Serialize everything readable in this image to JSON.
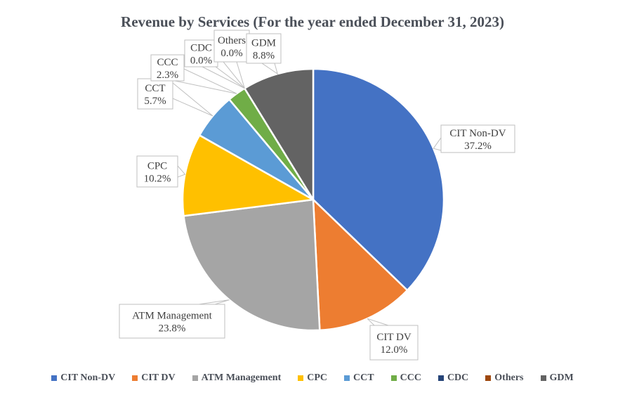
{
  "chart_data": {
    "type": "pie",
    "title": "Revenue by Services (For the year ended December 31, 2023)",
    "unit": "%",
    "legend_position": "bottom",
    "start_angle_deg": 0,
    "direction": "clockwise",
    "slices": [
      {
        "label": "CIT Non-DV",
        "value": 37.2,
        "pct_label": "37.2%",
        "color": "#4472C4"
      },
      {
        "label": "CIT DV",
        "value": 12.0,
        "pct_label": "12.0%",
        "color": "#ED7D31"
      },
      {
        "label": "ATM Management",
        "value": 23.8,
        "pct_label": "23.8%",
        "color": "#A5A5A5"
      },
      {
        "label": "CPC",
        "value": 10.2,
        "pct_label": "10.2%",
        "color": "#FFC000"
      },
      {
        "label": "CCT",
        "value": 5.7,
        "pct_label": "5.7%",
        "color": "#5B9BD5"
      },
      {
        "label": "CCC",
        "value": 2.3,
        "pct_label": "2.3%",
        "color": "#70AD47"
      },
      {
        "label": "CDC",
        "value": 0.0,
        "pct_label": "0.0%",
        "color": "#264478"
      },
      {
        "label": "Others",
        "value": 0.0,
        "pct_label": "0.0%",
        "color": "#9E480E"
      },
      {
        "label": "GDM",
        "value": 8.8,
        "pct_label": "8.8%",
        "color": "#636363"
      }
    ]
  },
  "colors": {
    "background": "#ffffff",
    "callout_border": "#BFBFBF",
    "callout_fill": "#ffffff",
    "callout_text": "#404040",
    "title_text": "#4a4f58",
    "legend_text": "#4a4f58"
  }
}
